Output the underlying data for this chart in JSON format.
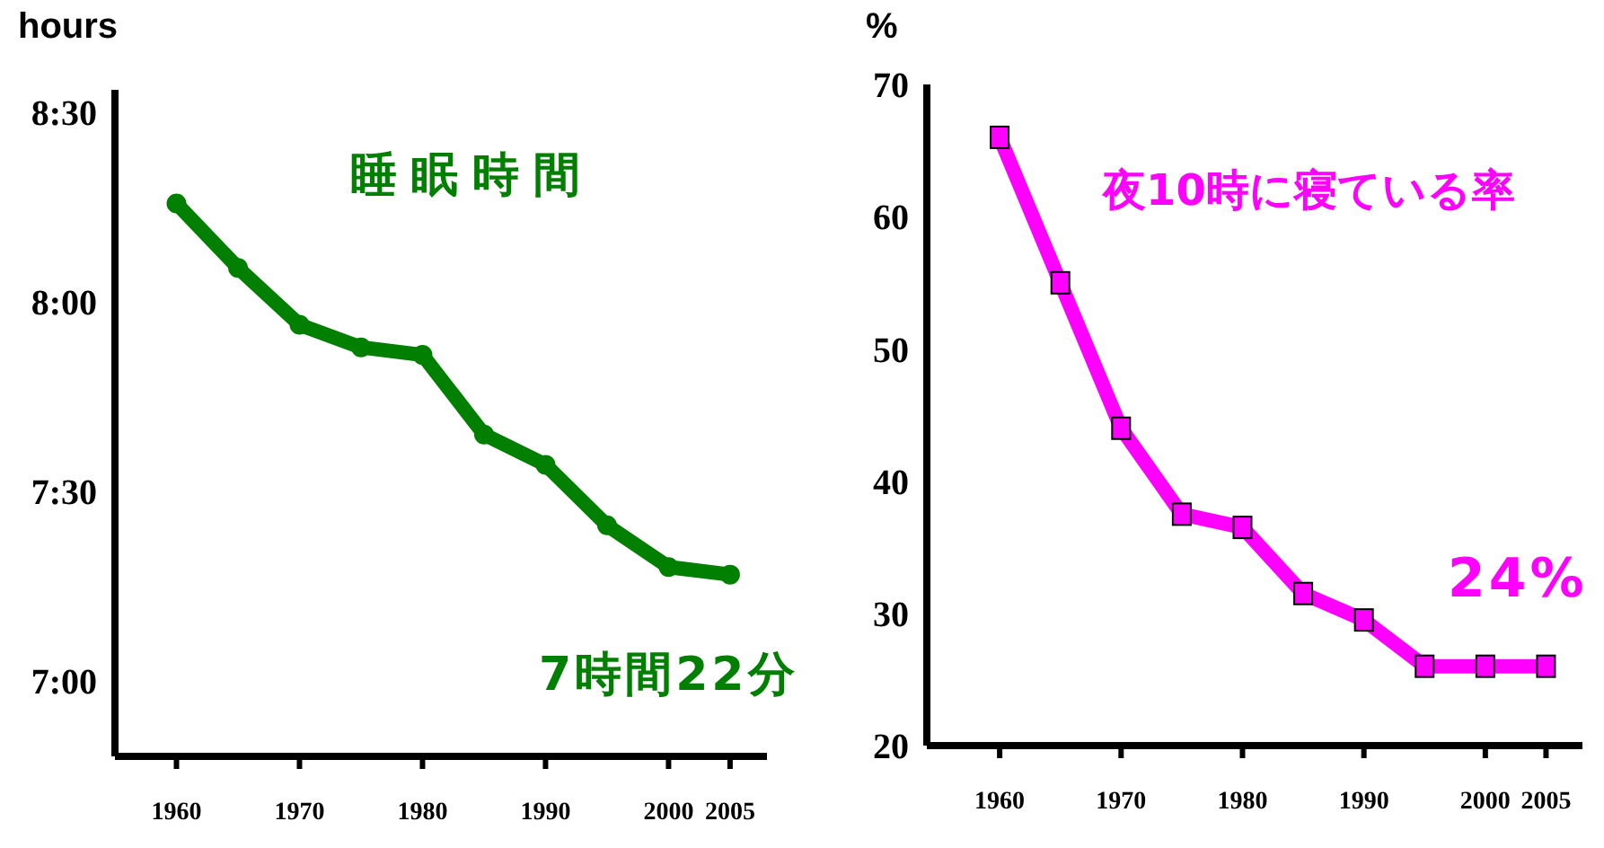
{
  "chart_data": [
    {
      "type": "line",
      "ylabel": "hours",
      "x": [
        1960,
        1965,
        1970,
        1975,
        1980,
        1985,
        1990,
        1995,
        2000,
        2005
      ],
      "xlim": [
        1955,
        2008
      ],
      "xticks": [
        1960,
        1970,
        1980,
        1990,
        2000,
        2005
      ],
      "ylim": [
        6.8,
        8.56
      ],
      "yticks": [
        {
          "value": 7,
          "label": "7:00"
        },
        {
          "value": 7.5,
          "label": "7:30"
        },
        {
          "value": 8,
          "label": "8:00"
        },
        {
          "value": 8.5,
          "label": "8:30"
        }
      ],
      "series": [
        {
          "name": "睡眠時間",
          "color": "#007f00",
          "marker": "circle",
          "values": [
            8.26,
            8.09,
            7.94,
            7.88,
            7.86,
            7.65,
            7.57,
            7.41,
            7.3,
            7.28
          ]
        }
      ],
      "annotations": [
        "7時間22分"
      ],
      "grid": false,
      "legend": false
    },
    {
      "type": "line",
      "ylabel": "%",
      "x": [
        1960,
        1965,
        1970,
        1975,
        1980,
        1985,
        1990,
        1995,
        2000,
        2005
      ],
      "xlim": [
        1954,
        2008
      ],
      "xticks": [
        1960,
        1970,
        1980,
        1990,
        2000,
        2005
      ],
      "ylim": [
        20,
        70
      ],
      "yticks": [
        20,
        30,
        40,
        50,
        60,
        70
      ],
      "series": [
        {
          "name": "夜10時に寝ている率",
          "color": "#ff00ff",
          "marker": "square",
          "values": [
            66,
            55,
            44,
            37.5,
            36.5,
            31.5,
            29.5,
            26,
            26,
            26
          ]
        }
      ],
      "annotations": [
        "24%"
      ],
      "grid": false,
      "legend": false
    }
  ]
}
